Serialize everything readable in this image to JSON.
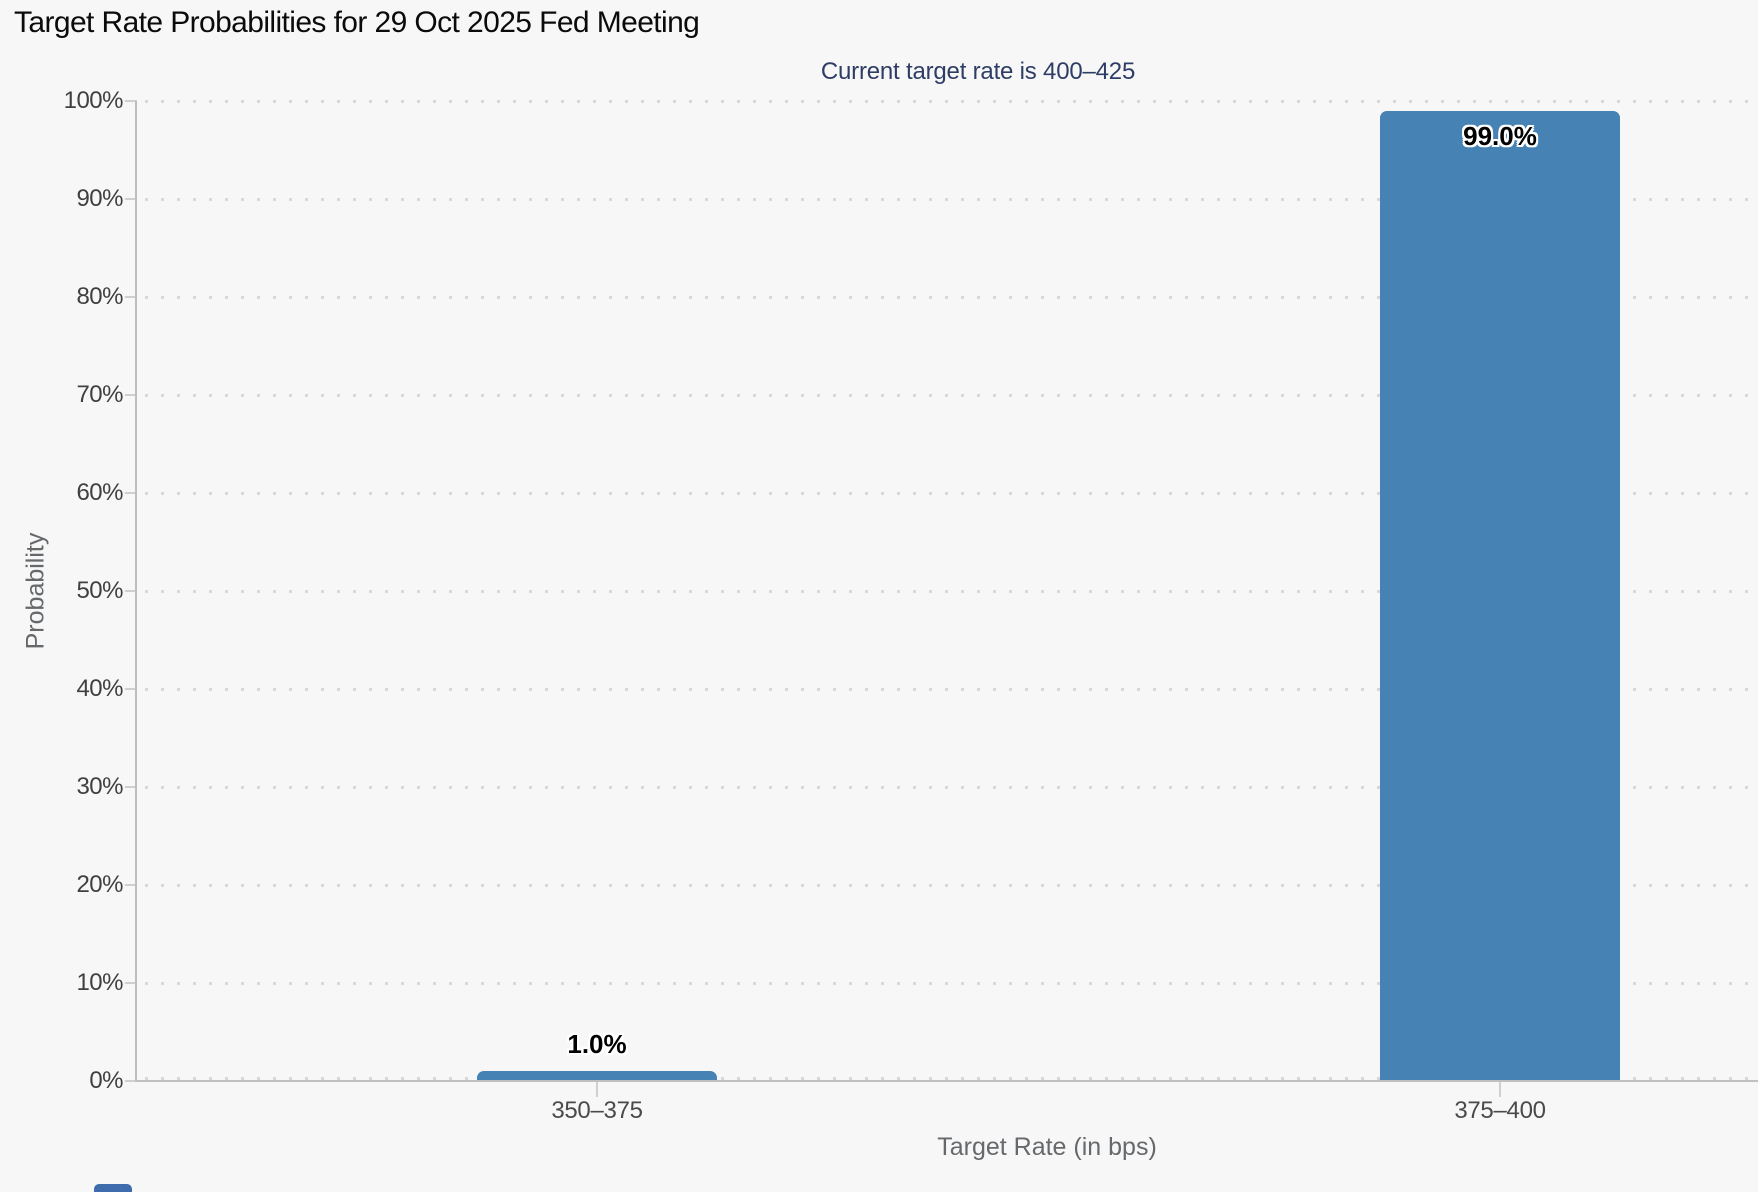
{
  "header": {
    "title": "Target Rate Probabilities for 29 Oct 2025 Fed Meeting",
    "subtitle": "Current target rate is 400–425"
  },
  "chart_data": {
    "type": "bar",
    "title": "Target Rate Probabilities for 29 Oct 2025 Fed Meeting",
    "subtitle": "Current target rate is 400–425",
    "categories": [
      "350–375",
      "375–400"
    ],
    "values": [
      1.0,
      99.0
    ],
    "value_labels": [
      "1.0%",
      "99.0%"
    ],
    "xlabel": "Target Rate (in bps)",
    "ylabel": "Probability",
    "ylim": [
      0,
      100
    ],
    "ytick_step": 10,
    "ytick_labels": [
      "0%",
      "10%",
      "20%",
      "30%",
      "40%",
      "50%",
      "60%",
      "70%",
      "80%",
      "90%",
      "100%"
    ],
    "grid": "horizontal-dotted",
    "legend": "none",
    "bar_color": "#4682b4",
    "subtitle_color": "#2e3d66"
  }
}
